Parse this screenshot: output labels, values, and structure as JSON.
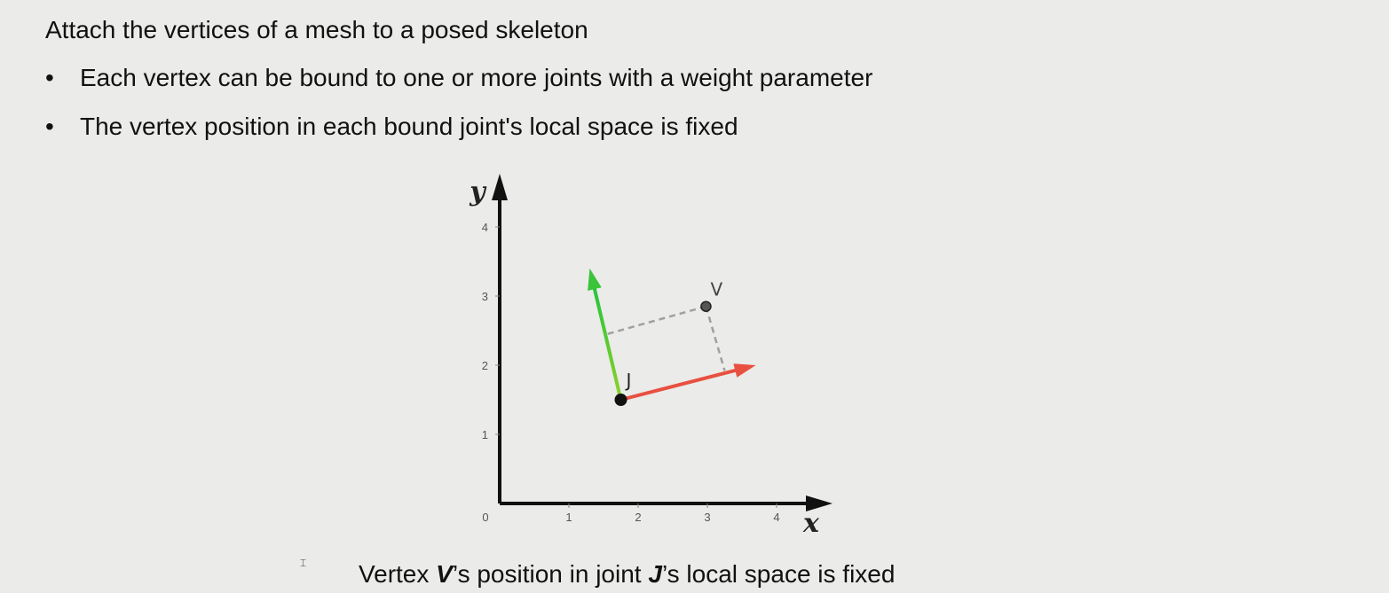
{
  "title": "Attach the vertices of a mesh to a posed skeleton",
  "bullets": [
    "Each vertex can be bound to one or more joints with a weight parameter",
    "The vertex position in each bound joint's local space is fixed"
  ],
  "diagram": {
    "axis_x_label": "x",
    "axis_y_label": "y",
    "x_ticks": [
      "1",
      "2",
      "3",
      "4"
    ],
    "y_ticks": [
      "1",
      "2",
      "3",
      "4"
    ],
    "origin_label": "0",
    "joint": {
      "label": "J",
      "x": 1.75,
      "y": 1.5
    },
    "vertex": {
      "label": "V",
      "x": 2.98,
      "y": 2.85
    },
    "joint_x_axis_end": {
      "x": 3.7,
      "y": 2.0
    },
    "joint_y_axis_end": {
      "x": 1.3,
      "y": 3.4
    },
    "proj_on_x_axis": {
      "x": 3.25,
      "y": 1.92
    },
    "proj_on_y_axis": {
      "x": 1.55,
      "y": 2.45
    },
    "colors": {
      "x_axis": "#e85040",
      "y_axis": "#39c439",
      "axes": "#111111",
      "projection": "#a0a0a0"
    }
  },
  "caption": {
    "pre": "Vertex ",
    "v": "V",
    "mid": "’s position in joint ",
    "j": "J",
    "post": "’s local space is fixed"
  }
}
